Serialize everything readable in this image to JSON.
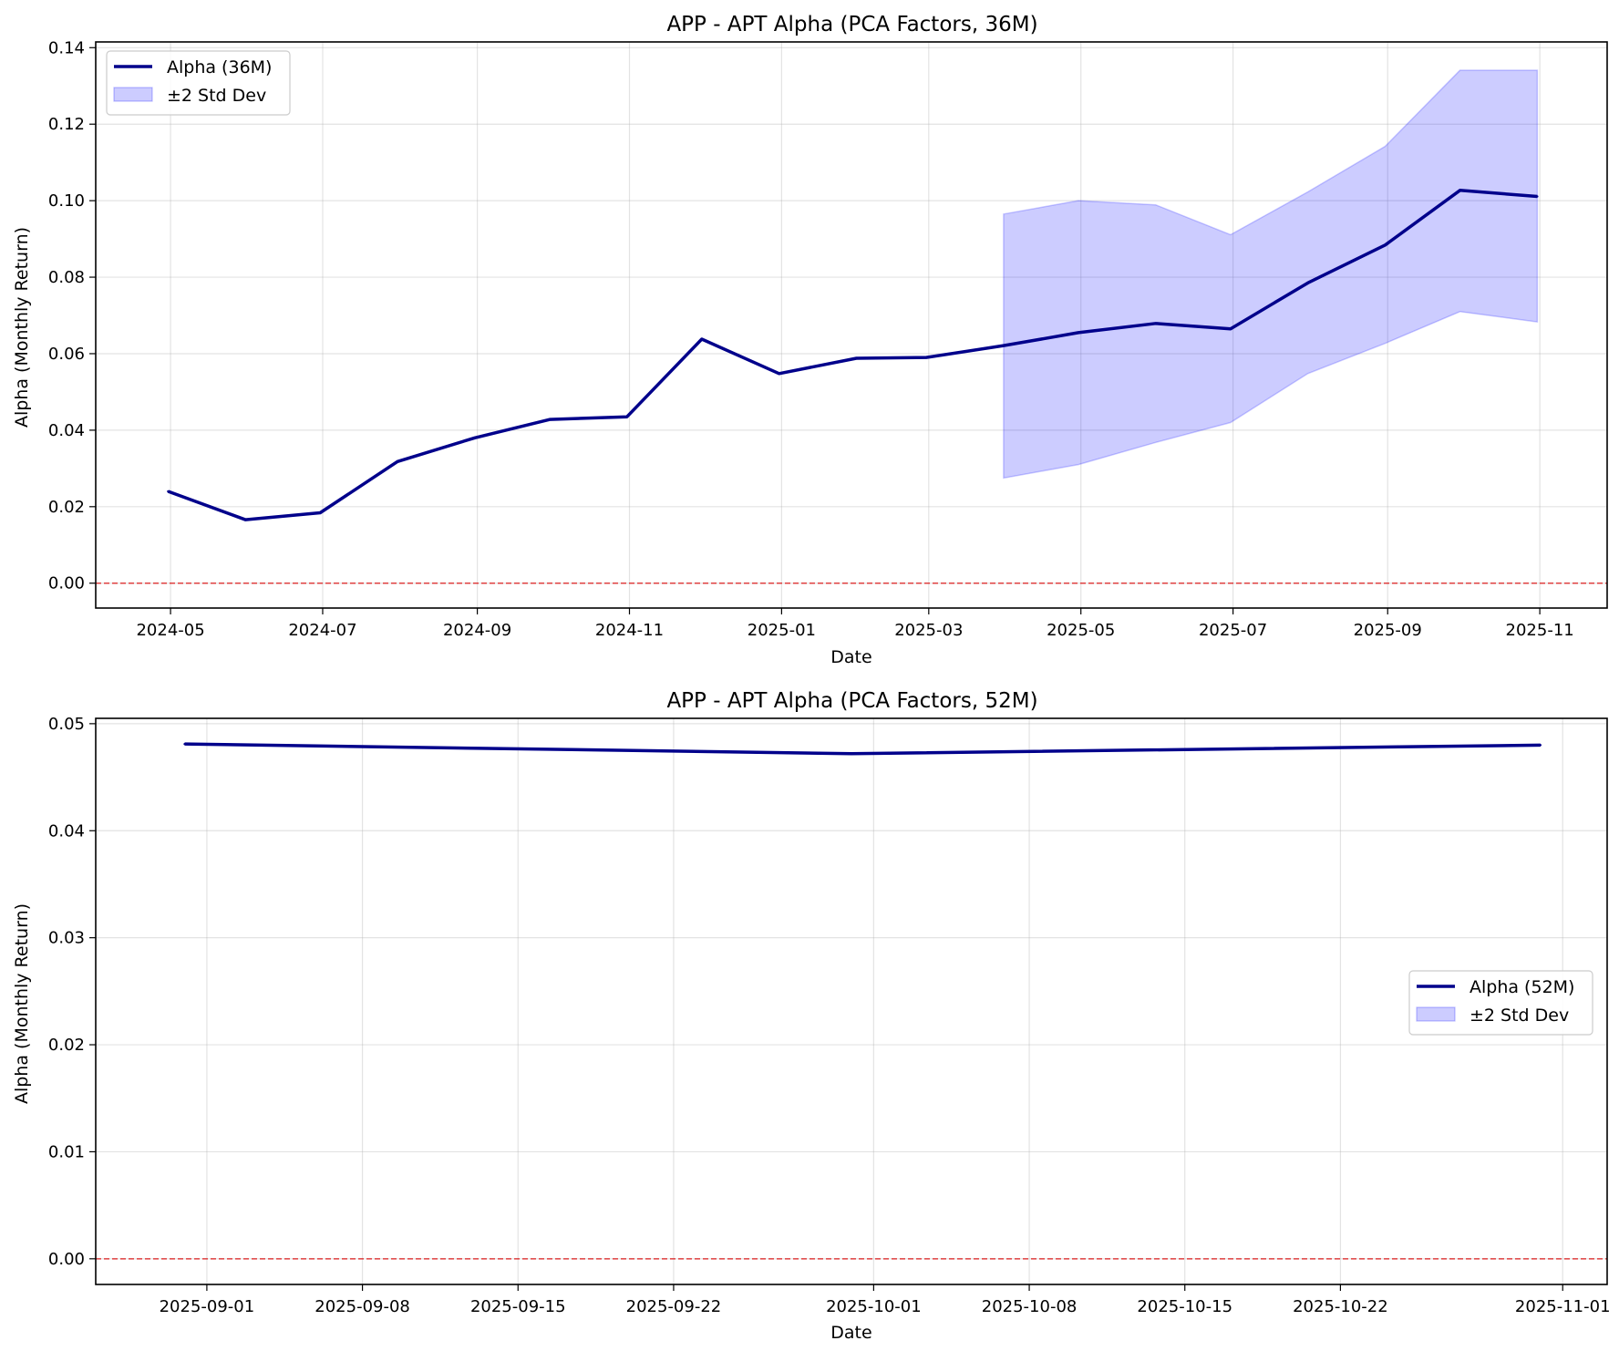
{
  "chart_data": [
    {
      "type": "line",
      "title": "APP - APT Alpha (PCA Factors, 36M)",
      "xlabel": "Date",
      "ylabel": "Alpha (Monthly Return)",
      "x_type": "date",
      "xlim": [
        "2024-04-01",
        "2025-11-28"
      ],
      "ylim": [
        -0.0065,
        0.1415
      ],
      "xticks": [
        "2024-05",
        "2024-07",
        "2024-09",
        "2024-11",
        "2025-01",
        "2025-03",
        "2025-05",
        "2025-07",
        "2025-09",
        "2025-11"
      ],
      "xtick_dates": [
        "2024-05-01",
        "2024-07-01",
        "2024-09-01",
        "2024-11-01",
        "2025-01-01",
        "2025-03-01",
        "2025-05-01",
        "2025-07-01",
        "2025-09-01",
        "2025-11-01"
      ],
      "yticks": [
        "0.00",
        "0.02",
        "0.04",
        "0.06",
        "0.08",
        "0.10",
        "0.12",
        "0.14"
      ],
      "ytick_values": [
        0,
        0.02,
        0.04,
        0.06,
        0.08,
        0.1,
        0.12,
        0.14
      ],
      "grid": true,
      "legend_position": "upper left",
      "reference_line": {
        "y": 0,
        "color": "#dd2222",
        "style": "dashed"
      },
      "series": [
        {
          "name": "Alpha (36M)",
          "color": "#00008b",
          "x": [
            "2024-04-30",
            "2024-05-31",
            "2024-06-30",
            "2024-07-31",
            "2024-08-31",
            "2024-09-30",
            "2024-10-31",
            "2024-11-30",
            "2024-12-31",
            "2025-01-31",
            "2025-02-28",
            "2025-03-31",
            "2025-04-30",
            "2025-05-31",
            "2025-06-30",
            "2025-07-31",
            "2025-08-31",
            "2025-09-30",
            "2025-10-31"
          ],
          "values": [
            0.024,
            0.0166,
            0.0184,
            0.0318,
            0.038,
            0.0428,
            0.0435,
            0.0638,
            0.0548,
            0.0588,
            0.059,
            0.0621,
            0.0655,
            0.0679,
            0.0665,
            0.0785,
            0.0884,
            0.1027,
            0.1011
          ]
        }
      ],
      "band": {
        "name": "±2 Std Dev",
        "color": "#0000ff",
        "x": [
          "2025-03-31",
          "2025-04-30",
          "2025-05-31",
          "2025-06-30",
          "2025-07-31",
          "2025-08-31",
          "2025-09-30",
          "2025-10-31"
        ],
        "lower": [
          0.0275,
          0.031,
          0.0368,
          0.042,
          0.0548,
          0.0627,
          0.071,
          0.0683
        ],
        "upper": [
          0.0965,
          0.1,
          0.0989,
          0.0911,
          0.1023,
          0.1142,
          0.1341,
          0.1341
        ]
      }
    },
    {
      "type": "line",
      "title": "APP - APT Alpha (PCA Factors, 52M)",
      "xlabel": "Date",
      "ylabel": "Alpha (Monthly Return)",
      "x_type": "date",
      "xlim": [
        "2025-08-27",
        "2025-11-03"
      ],
      "ylim": [
        -0.0024,
        0.0505
      ],
      "xticks": [
        "2025-09-01",
        "2025-09-08",
        "2025-09-15",
        "2025-09-22",
        "2025-10-01",
        "2025-10-08",
        "2025-10-15",
        "2025-10-22",
        "2025-11-01"
      ],
      "xtick_dates": [
        "2025-09-01",
        "2025-09-08",
        "2025-09-15",
        "2025-09-22",
        "2025-10-01",
        "2025-10-08",
        "2025-10-15",
        "2025-10-22",
        "2025-11-01"
      ],
      "yticks": [
        "0.00",
        "0.01",
        "0.02",
        "0.03",
        "0.04",
        "0.05"
      ],
      "ytick_values": [
        0,
        0.01,
        0.02,
        0.03,
        0.04,
        0.05
      ],
      "grid": true,
      "legend_position": "center right",
      "reference_line": {
        "y": 0,
        "color": "#dd2222",
        "style": "dashed"
      },
      "series": [
        {
          "name": "Alpha (52M)",
          "color": "#00008b",
          "x": [
            "2025-08-31",
            "2025-09-30",
            "2025-10-31"
          ],
          "values": [
            0.0481,
            0.0472,
            0.048
          ]
        }
      ],
      "band": {
        "name": "±2 Std Dev",
        "color": "#0000ff",
        "x": [],
        "lower": [],
        "upper": []
      }
    }
  ]
}
